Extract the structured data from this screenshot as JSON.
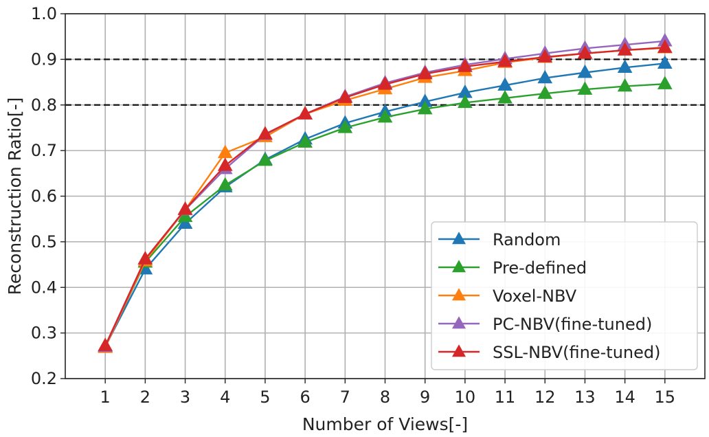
{
  "chart_data": {
    "type": "line",
    "title": "",
    "xlabel": "Number of Views[-]",
    "ylabel": "Reconstruction Ratio[-]",
    "x": [
      1,
      2,
      3,
      4,
      5,
      6,
      7,
      8,
      9,
      10,
      11,
      12,
      13,
      14,
      15
    ],
    "xlim": [
      0,
      16
    ],
    "ylim": [
      0.2,
      1.0
    ],
    "yticks": [
      0.2,
      0.3,
      0.4,
      0.5,
      0.6,
      0.7,
      0.8,
      0.9,
      1.0
    ],
    "ytick_labels": [
      "0.2",
      "0.3",
      "0.4",
      "0.5",
      "0.6",
      "0.7",
      "0.8",
      "0.9",
      "1.0"
    ],
    "xtick_labels": [
      "1",
      "2",
      "3",
      "4",
      "5",
      "6",
      "7",
      "8",
      "9",
      "10",
      "11",
      "12",
      "13",
      "14",
      "15"
    ],
    "grid": true,
    "reference_lines": [
      0.8,
      0.9
    ],
    "legend_position": "lower-right",
    "marker": "triangle",
    "series": [
      {
        "name": "Random",
        "color": "#1f77b4",
        "values": [
          0.27,
          0.44,
          0.54,
          0.62,
          0.68,
          0.725,
          0.76,
          0.785,
          0.807,
          0.827,
          0.843,
          0.859,
          0.871,
          0.882,
          0.891
        ]
      },
      {
        "name": "Pre-defined",
        "color": "#2ca02c",
        "values": [
          0.27,
          0.455,
          0.555,
          0.624,
          0.678,
          0.718,
          0.75,
          0.773,
          0.791,
          0.805,
          0.815,
          0.825,
          0.834,
          0.841,
          0.846
        ]
      },
      {
        "name": "Voxel-NBV",
        "color": "#ff7f0e",
        "values": [
          0.268,
          0.458,
          0.57,
          0.695,
          0.73,
          0.78,
          0.81,
          0.835,
          0.86,
          0.875,
          0.893,
          0.904,
          0.913,
          0.92,
          0.925
        ]
      },
      {
        "name": "PC-NBV(fine-tuned)",
        "color": "#9467bd",
        "values": [
          0.27,
          0.462,
          0.57,
          0.66,
          0.735,
          0.78,
          0.818,
          0.848,
          0.871,
          0.888,
          0.901,
          0.913,
          0.924,
          0.932,
          0.94
        ]
      },
      {
        "name": "SSL-NBV(fine-tuned)",
        "color": "#d62728",
        "values": [
          0.272,
          0.462,
          0.571,
          0.667,
          0.736,
          0.78,
          0.816,
          0.845,
          0.868,
          0.884,
          0.895,
          0.905,
          0.913,
          0.92,
          0.926
        ]
      }
    ]
  }
}
